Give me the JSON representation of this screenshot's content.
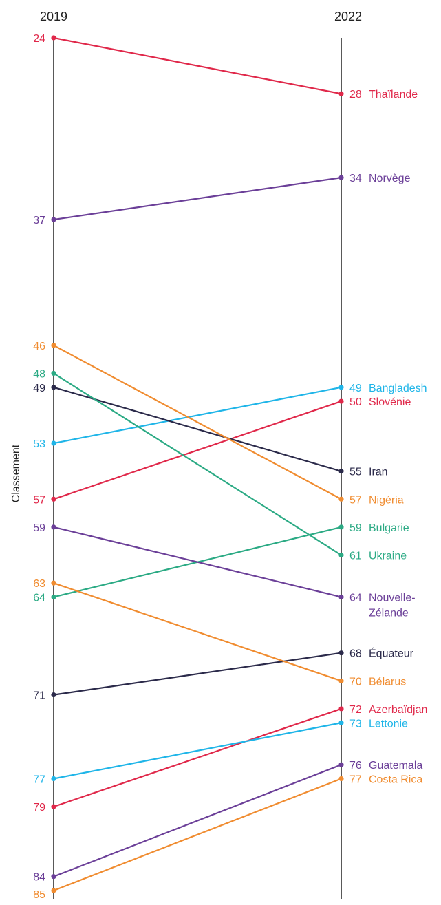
{
  "chart_data": {
    "type": "slope",
    "ylabel": "Classement",
    "x": [
      "2019",
      "2022"
    ],
    "series": [
      {
        "name": "Thaïlande",
        "label_lines": [
          "Thaïlande"
        ],
        "values": [
          24,
          28
        ],
        "color": "#e0284a"
      },
      {
        "name": "Norvège",
        "label_lines": [
          "Norvège"
        ],
        "values": [
          37,
          34
        ],
        "color": "#6b3f98"
      },
      {
        "name": "Bangladesh",
        "label_lines": [
          "Bangladesh"
        ],
        "values": [
          53,
          49
        ],
        "color": "#1fb5e8"
      },
      {
        "name": "Slovénie",
        "label_lines": [
          "Slovénie"
        ],
        "values": [
          57,
          50
        ],
        "color": "#e0284a"
      },
      {
        "name": "Iran",
        "label_lines": [
          "Iran"
        ],
        "values": [
          49,
          55
        ],
        "color": "#2b2a4a"
      },
      {
        "name": "Nigéria",
        "label_lines": [
          "Nigéria"
        ],
        "values": [
          46,
          57
        ],
        "color": "#f08c30"
      },
      {
        "name": "Bulgarie",
        "label_lines": [
          "Bulgarie"
        ],
        "values": [
          64,
          59
        ],
        "color": "#2baa84"
      },
      {
        "name": "Ukraine",
        "label_lines": [
          "Ukraine"
        ],
        "values": [
          48,
          61
        ],
        "color": "#2baa84"
      },
      {
        "name": "Nouvelle-Zélande",
        "label_lines": [
          "Nouvelle-",
          "Zélande"
        ],
        "values": [
          59,
          64
        ],
        "color": "#6b3f98"
      },
      {
        "name": "Équateur",
        "label_lines": [
          "Équateur"
        ],
        "values": [
          71,
          68
        ],
        "color": "#2b2a4a"
      },
      {
        "name": "Bélarus",
        "label_lines": [
          "Bélarus"
        ],
        "values": [
          63,
          70
        ],
        "color": "#f08c30"
      },
      {
        "name": "Azerbaïdjan",
        "label_lines": [
          "Azerbaïdjan"
        ],
        "values": [
          79,
          72
        ],
        "color": "#e0284a"
      },
      {
        "name": "Lettonie",
        "label_lines": [
          "Lettonie"
        ],
        "values": [
          77,
          73
        ],
        "color": "#1fb5e8"
      },
      {
        "name": "Guatemala",
        "label_lines": [
          "Guatemala"
        ],
        "values": [
          84,
          76
        ],
        "color": "#6b3f98"
      },
      {
        "name": "Costa Rica",
        "label_lines": [
          "Costa Rica"
        ],
        "values": [
          85,
          77
        ],
        "color": "#f08c30"
      }
    ]
  }
}
